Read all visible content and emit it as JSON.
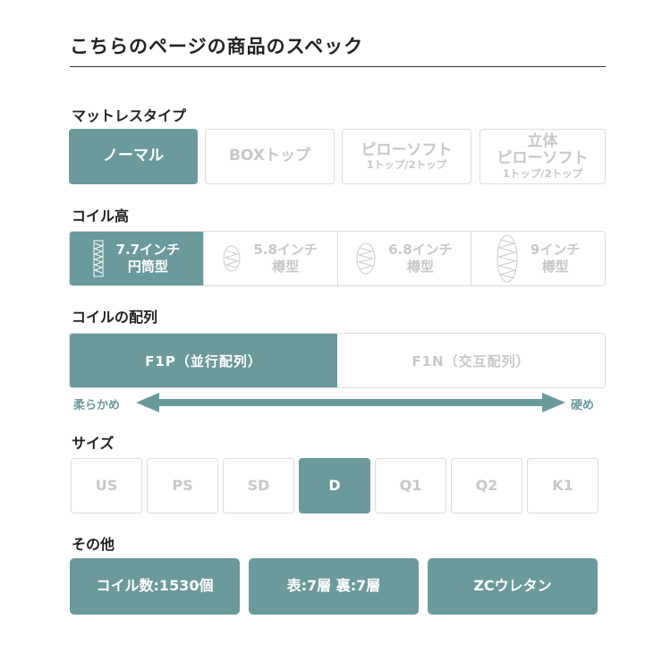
{
  "title": "こちらのページの商品のスペック",
  "accent": "#6b9a9d",
  "mattress_type": {
    "label": "マットレスタイプ",
    "options": [
      {
        "line1": "ノーマル",
        "selected": true
      },
      {
        "line1": "BOXトップ",
        "selected": false
      },
      {
        "line1": "ピローソフト",
        "sub": "1トップ/2トップ",
        "selected": false
      },
      {
        "line0": "立体",
        "line1": "ピローソフト",
        "sub": "1トップ/2トップ",
        "selected": false
      }
    ]
  },
  "coil_height": {
    "label": "コイル高",
    "options": [
      {
        "size": "7.7インチ",
        "shape": "円筒型",
        "icon": "cylinder-coil-icon",
        "selected": true
      },
      {
        "size": "5.8インチ",
        "shape": "樽型",
        "icon": "barrel-coil-icon",
        "selected": false
      },
      {
        "size": "6.8インチ",
        "shape": "樽型",
        "icon": "barrel-coil-icon",
        "selected": false
      },
      {
        "size": "9インチ",
        "shape": "樽型",
        "icon": "barrel-coil-icon",
        "selected": false
      }
    ]
  },
  "coil_arrangement": {
    "label": "コイルの配列",
    "options": [
      {
        "text": "F1P（並行配列）",
        "selected": true
      },
      {
        "text": "F1N（交互配列）",
        "selected": false
      }
    ],
    "soft": "柔らかめ",
    "hard": "硬め"
  },
  "size": {
    "label": "サイズ",
    "options": [
      {
        "text": "US",
        "selected": false
      },
      {
        "text": "PS",
        "selected": false
      },
      {
        "text": "SD",
        "selected": false
      },
      {
        "text": "D",
        "selected": true
      },
      {
        "text": "Q1",
        "selected": false
      },
      {
        "text": "Q2",
        "selected": false
      },
      {
        "text": "K1",
        "selected": false
      }
    ]
  },
  "other": {
    "label": "その他",
    "items": [
      "コイル数:1530個",
      "表:7層 裏:7層",
      "ZCウレタン"
    ]
  }
}
